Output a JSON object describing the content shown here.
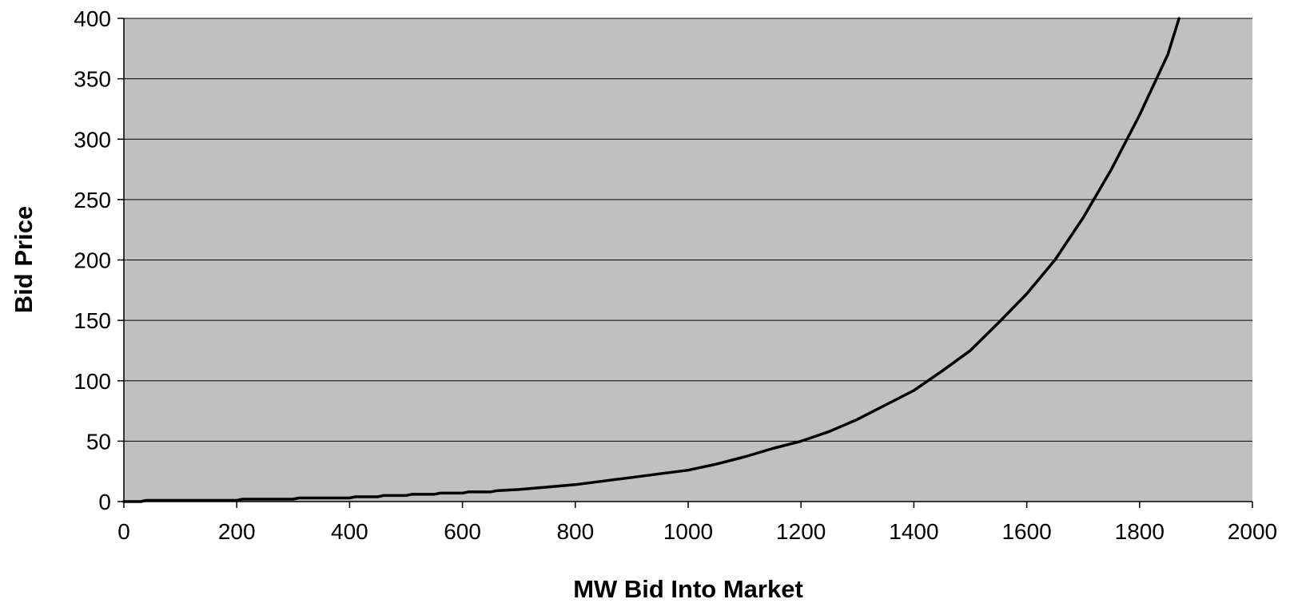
{
  "chart_data": {
    "type": "line",
    "title": "",
    "xlabel": "MW Bid Into Market",
    "ylabel": "Bid Price",
    "xlim": [
      0,
      2000
    ],
    "ylim": [
      0,
      400
    ],
    "x_ticks": [
      0,
      200,
      400,
      600,
      800,
      1000,
      1200,
      1400,
      1600,
      1800,
      2000
    ],
    "y_ticks": [
      0,
      50,
      100,
      150,
      200,
      250,
      300,
      350,
      400
    ],
    "x_tick_labels": [
      "0",
      "200",
      "400",
      "600",
      "800",
      "1000",
      "1200",
      "1400",
      "1600",
      "1800",
      "2000"
    ],
    "y_tick_labels": [
      "0",
      "50",
      "100",
      "150",
      "200",
      "250",
      "300",
      "350",
      "400"
    ],
    "grid": "horizontal",
    "legend": "none",
    "colors": {
      "plot_background": "#c0c0c0",
      "line": "#000000",
      "gridline": "#000000",
      "axis": "#000000"
    },
    "series": [
      {
        "x": [
          0,
          30,
          40,
          100,
          200,
          210,
          300,
          310,
          400,
          410,
          450,
          460,
          500,
          510,
          550,
          560,
          600,
          610,
          650,
          660,
          700,
          750,
          800,
          850,
          900,
          950,
          1000,
          1050,
          1100,
          1150,
          1200,
          1250,
          1300,
          1350,
          1400,
          1450,
          1500,
          1550,
          1600,
          1650,
          1700,
          1750,
          1800,
          1850,
          1870
        ],
        "y": [
          0,
          0,
          1,
          1,
          1,
          2,
          2,
          3,
          3,
          4,
          4,
          5,
          5,
          6,
          6,
          7,
          7,
          8,
          8,
          9,
          10,
          12,
          14,
          17,
          20,
          23,
          26,
          31,
          37,
          44,
          50,
          58,
          68,
          80,
          92,
          108,
          125,
          148,
          172,
          200,
          235,
          275,
          320,
          370,
          400
        ]
      }
    ]
  }
}
